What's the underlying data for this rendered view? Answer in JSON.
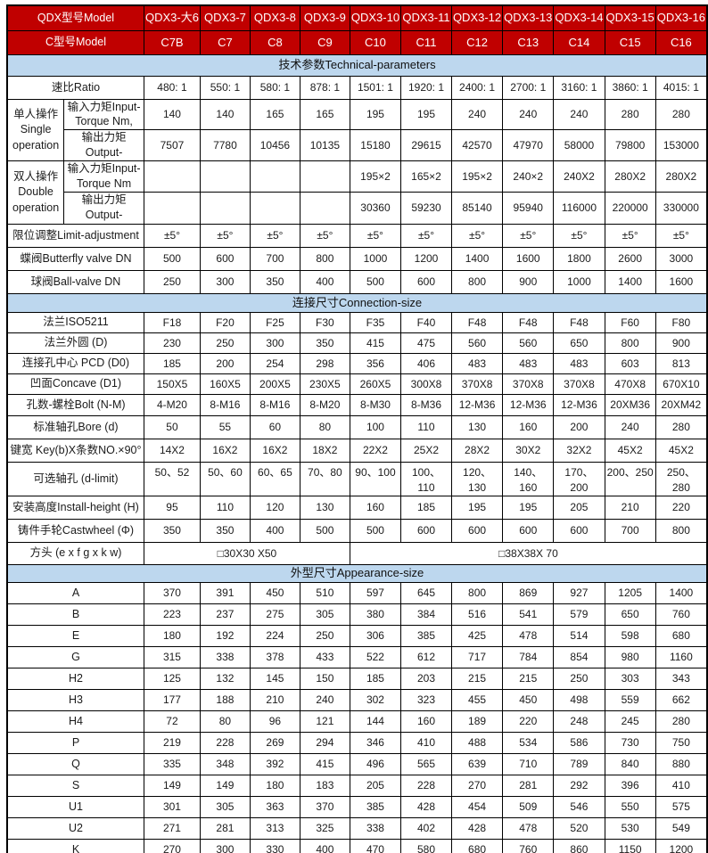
{
  "colors": {
    "header_red": "#C00000",
    "section_blue": "#BDD7EE",
    "border": "#000000",
    "header_text": "#FFFFFF",
    "body_text": "#1B1B1B"
  },
  "table": {
    "rows": [
      {
        "kind": "red",
        "label": "QDX型号Model",
        "values": [
          "QDX3-大6",
          "QDX3-7",
          "QDX3-8",
          "QDX3-9",
          "QDX3-10",
          "QDX3-11",
          "QDX3-12",
          "QDX3-13",
          "QDX3-14",
          "QDX3-15",
          "QDX3-16"
        ]
      },
      {
        "kind": "red",
        "label": "C型号Model",
        "values": [
          "C7B",
          "C7",
          "C8",
          "C9",
          "C10",
          "C11",
          "C12",
          "C13",
          "C14",
          "C15",
          "C16"
        ]
      },
      {
        "kind": "section",
        "title": "技术参数Technical-parameters"
      },
      {
        "kind": "row",
        "label": "速比Ratio",
        "values": [
          "480: 1",
          "550: 1",
          "580: 1",
          "878: 1",
          "1501: 1",
          "1920: 1",
          "2400: 1",
          "2700: 1",
          "3160: 1",
          "3860: 1",
          "4015: 1"
        ]
      },
      {
        "kind": "groupfirst",
        "glabel": "单人操作\nSingle\noperation",
        "label": "输入力矩Input-\nTorque Nm,",
        "values": [
          "140",
          "140",
          "165",
          "165",
          "195",
          "195",
          "240",
          "240",
          "240",
          "280",
          "280"
        ]
      },
      {
        "kind": "grouprow",
        "label": "输出力矩\nOutput-",
        "values": [
          "7507",
          "7780",
          "10456",
          "10135",
          "15180",
          "29615",
          "42570",
          "47970",
          "58000",
          "79800",
          "153000"
        ]
      },
      {
        "kind": "groupfirst",
        "glabel": "双人操作\nDouble\noperation",
        "label": "输入力矩Input-\nTorque Nm",
        "values": [
          "",
          "",
          "",
          "",
          "195×2",
          "165×2",
          "195×2",
          "240×2",
          "240X2",
          "280X2",
          "280X2"
        ]
      },
      {
        "kind": "grouprow",
        "label": "输出力矩\nOutput-",
        "values": [
          "",
          "",
          "",
          "",
          "30360",
          "59230",
          "85140",
          "95940",
          "116000",
          "220000",
          "330000"
        ]
      },
      {
        "kind": "row",
        "label": "限位调整Limit-adjustment",
        "values": [
          "±5°",
          "±5°",
          "±5°",
          "±5°",
          "±5°",
          "±5°",
          "±5°",
          "±5°",
          "±5°",
          "±5°",
          "±5°"
        ]
      },
      {
        "kind": "row",
        "label": "蝶阀Butterfly valve DN",
        "values": [
          "500",
          "600",
          "700",
          "800",
          "1000",
          "1200",
          "1400",
          "1600",
          "1800",
          "2600",
          "3000"
        ]
      },
      {
        "kind": "row",
        "label": "球阀Ball-valve DN",
        "values": [
          "250",
          "300",
          "350",
          "400",
          "500",
          "600",
          "800",
          "900",
          "1000",
          "1400",
          "1600"
        ]
      },
      {
        "kind": "section",
        "title": "连接尺寸Connection-size"
      },
      {
        "kind": "row",
        "label": "法兰ISO5211",
        "values": [
          "F18",
          "F20",
          "F25",
          "F30",
          "F35",
          "F40",
          "F48",
          "F48",
          "F48",
          "F60",
          "F80"
        ]
      },
      {
        "kind": "row",
        "label": "法兰外圆 (D)",
        "values": [
          "230",
          "250",
          "300",
          "350",
          "415",
          "475",
          "560",
          "560",
          "650",
          "800",
          "900"
        ]
      },
      {
        "kind": "row",
        "label": "连接孔中心 PCD (D0)",
        "values": [
          "185",
          "200",
          "254",
          "298",
          "356",
          "406",
          "483",
          "483",
          "483",
          "603",
          "813"
        ]
      },
      {
        "kind": "row",
        "label": "凹面Concave (D1)",
        "values": [
          "150X5",
          "160X5",
          "200X5",
          "230X5",
          "260X5",
          "300X8",
          "370X8",
          "370X8",
          "370X8",
          "470X8",
          "670X10"
        ]
      },
      {
        "kind": "row",
        "label": "孔数-螺栓Bolt (N-M)",
        "values": [
          "4-M20",
          "8-M16",
          "8-M16",
          "8-M20",
          "8-M30",
          "8-M36",
          "12-M36",
          "12-M36",
          "12-M36",
          "20XM36",
          "20XM42"
        ]
      },
      {
        "kind": "row",
        "label": "标准轴孔Bore (d)",
        "values": [
          "50",
          "55",
          "60",
          "80",
          "100",
          "110",
          "130",
          "160",
          "200",
          "240",
          "280"
        ]
      },
      {
        "kind": "row",
        "label": "键宽 Key(b)X条数NO.×90°",
        "values": [
          "14X2",
          "16X2",
          "16X2",
          "18X2",
          "22X2",
          "25X2",
          "28X2",
          "30X2",
          "32X2",
          "45X2",
          "45X2"
        ]
      },
      {
        "kind": "rowclip",
        "label": "可选轴孔 (d-limit)",
        "values": [
          "50、52",
          "50、60",
          "60、65",
          "70、80",
          "90、100",
          "100、\n110",
          "120、\n130",
          "140、\n160",
          "170、\n200",
          "200、250",
          "250、\n280"
        ]
      },
      {
        "kind": "row",
        "label": "安装高度Install-height (H)",
        "values": [
          "95",
          "110",
          "120",
          "130",
          "160",
          "185",
          "195",
          "195",
          "205",
          "210",
          "220"
        ]
      },
      {
        "kind": "row",
        "label": "铸件手轮Castwheel (Φ)",
        "values": [
          "350",
          "350",
          "400",
          "500",
          "500",
          "600",
          "600",
          "600",
          "600",
          "700",
          "800"
        ]
      },
      {
        "kind": "span",
        "label": "方头 (e x f g x k w)",
        "spans": [
          {
            "t": "□30X30 X50",
            "cs": 4
          },
          {
            "t": "□38X38X 70",
            "cs": 7
          }
        ]
      },
      {
        "kind": "section",
        "title": "外型尺寸Appearance-size"
      },
      {
        "kind": "row",
        "label": "A",
        "values": [
          "370",
          "391",
          "450",
          "510",
          "597",
          "645",
          "800",
          "869",
          "927",
          "1205",
          "1400"
        ]
      },
      {
        "kind": "row",
        "label": "B",
        "values": [
          "223",
          "237",
          "275",
          "305",
          "380",
          "384",
          "516",
          "541",
          "579",
          "650",
          "760"
        ]
      },
      {
        "kind": "row",
        "label": "E",
        "values": [
          "180",
          "192",
          "224",
          "250",
          "306",
          "385",
          "425",
          "478",
          "514",
          "598",
          "680"
        ]
      },
      {
        "kind": "row",
        "label": "G",
        "values": [
          "315",
          "338",
          "378",
          "433",
          "522",
          "612",
          "717",
          "784",
          "854",
          "980",
          "1160"
        ]
      },
      {
        "kind": "row",
        "label": "H2",
        "values": [
          "125",
          "132",
          "145",
          "150",
          "185",
          "203",
          "215",
          "215",
          "250",
          "303",
          "343"
        ]
      },
      {
        "kind": "row",
        "label": "H3",
        "values": [
          "177",
          "188",
          "210",
          "240",
          "302",
          "323",
          "455",
          "450",
          "498",
          "559",
          "662"
        ]
      },
      {
        "kind": "row",
        "label": "H4",
        "values": [
          "72",
          "80",
          "96",
          "121",
          "144",
          "160",
          "189",
          "220",
          "248",
          "245",
          "280"
        ]
      },
      {
        "kind": "row",
        "label": "P",
        "values": [
          "219",
          "228",
          "269",
          "294",
          "346",
          "410",
          "488",
          "534",
          "586",
          "730",
          "750"
        ]
      },
      {
        "kind": "row",
        "label": "Q",
        "values": [
          "335",
          "348",
          "392",
          "415",
          "496",
          "565",
          "639",
          "710",
          "789",
          "840",
          "880"
        ]
      },
      {
        "kind": "row",
        "label": "S",
        "values": [
          "149",
          "149",
          "180",
          "183",
          "205",
          "228",
          "270",
          "281",
          "292",
          "396",
          "410"
        ]
      },
      {
        "kind": "row",
        "label": "U1",
        "values": [
          "301",
          "305",
          "363",
          "370",
          "385",
          "428",
          "454",
          "509",
          "546",
          "550",
          "575"
        ]
      },
      {
        "kind": "row",
        "label": "U2",
        "values": [
          "271",
          "281",
          "313",
          "325",
          "338",
          "402",
          "428",
          "478",
          "520",
          "530",
          "549"
        ]
      },
      {
        "kind": "row",
        "label": "K",
        "values": [
          "270",
          "300",
          "330",
          "400",
          "470",
          "580",
          "680",
          "760",
          "860",
          "1150",
          "1200"
        ]
      }
    ]
  }
}
